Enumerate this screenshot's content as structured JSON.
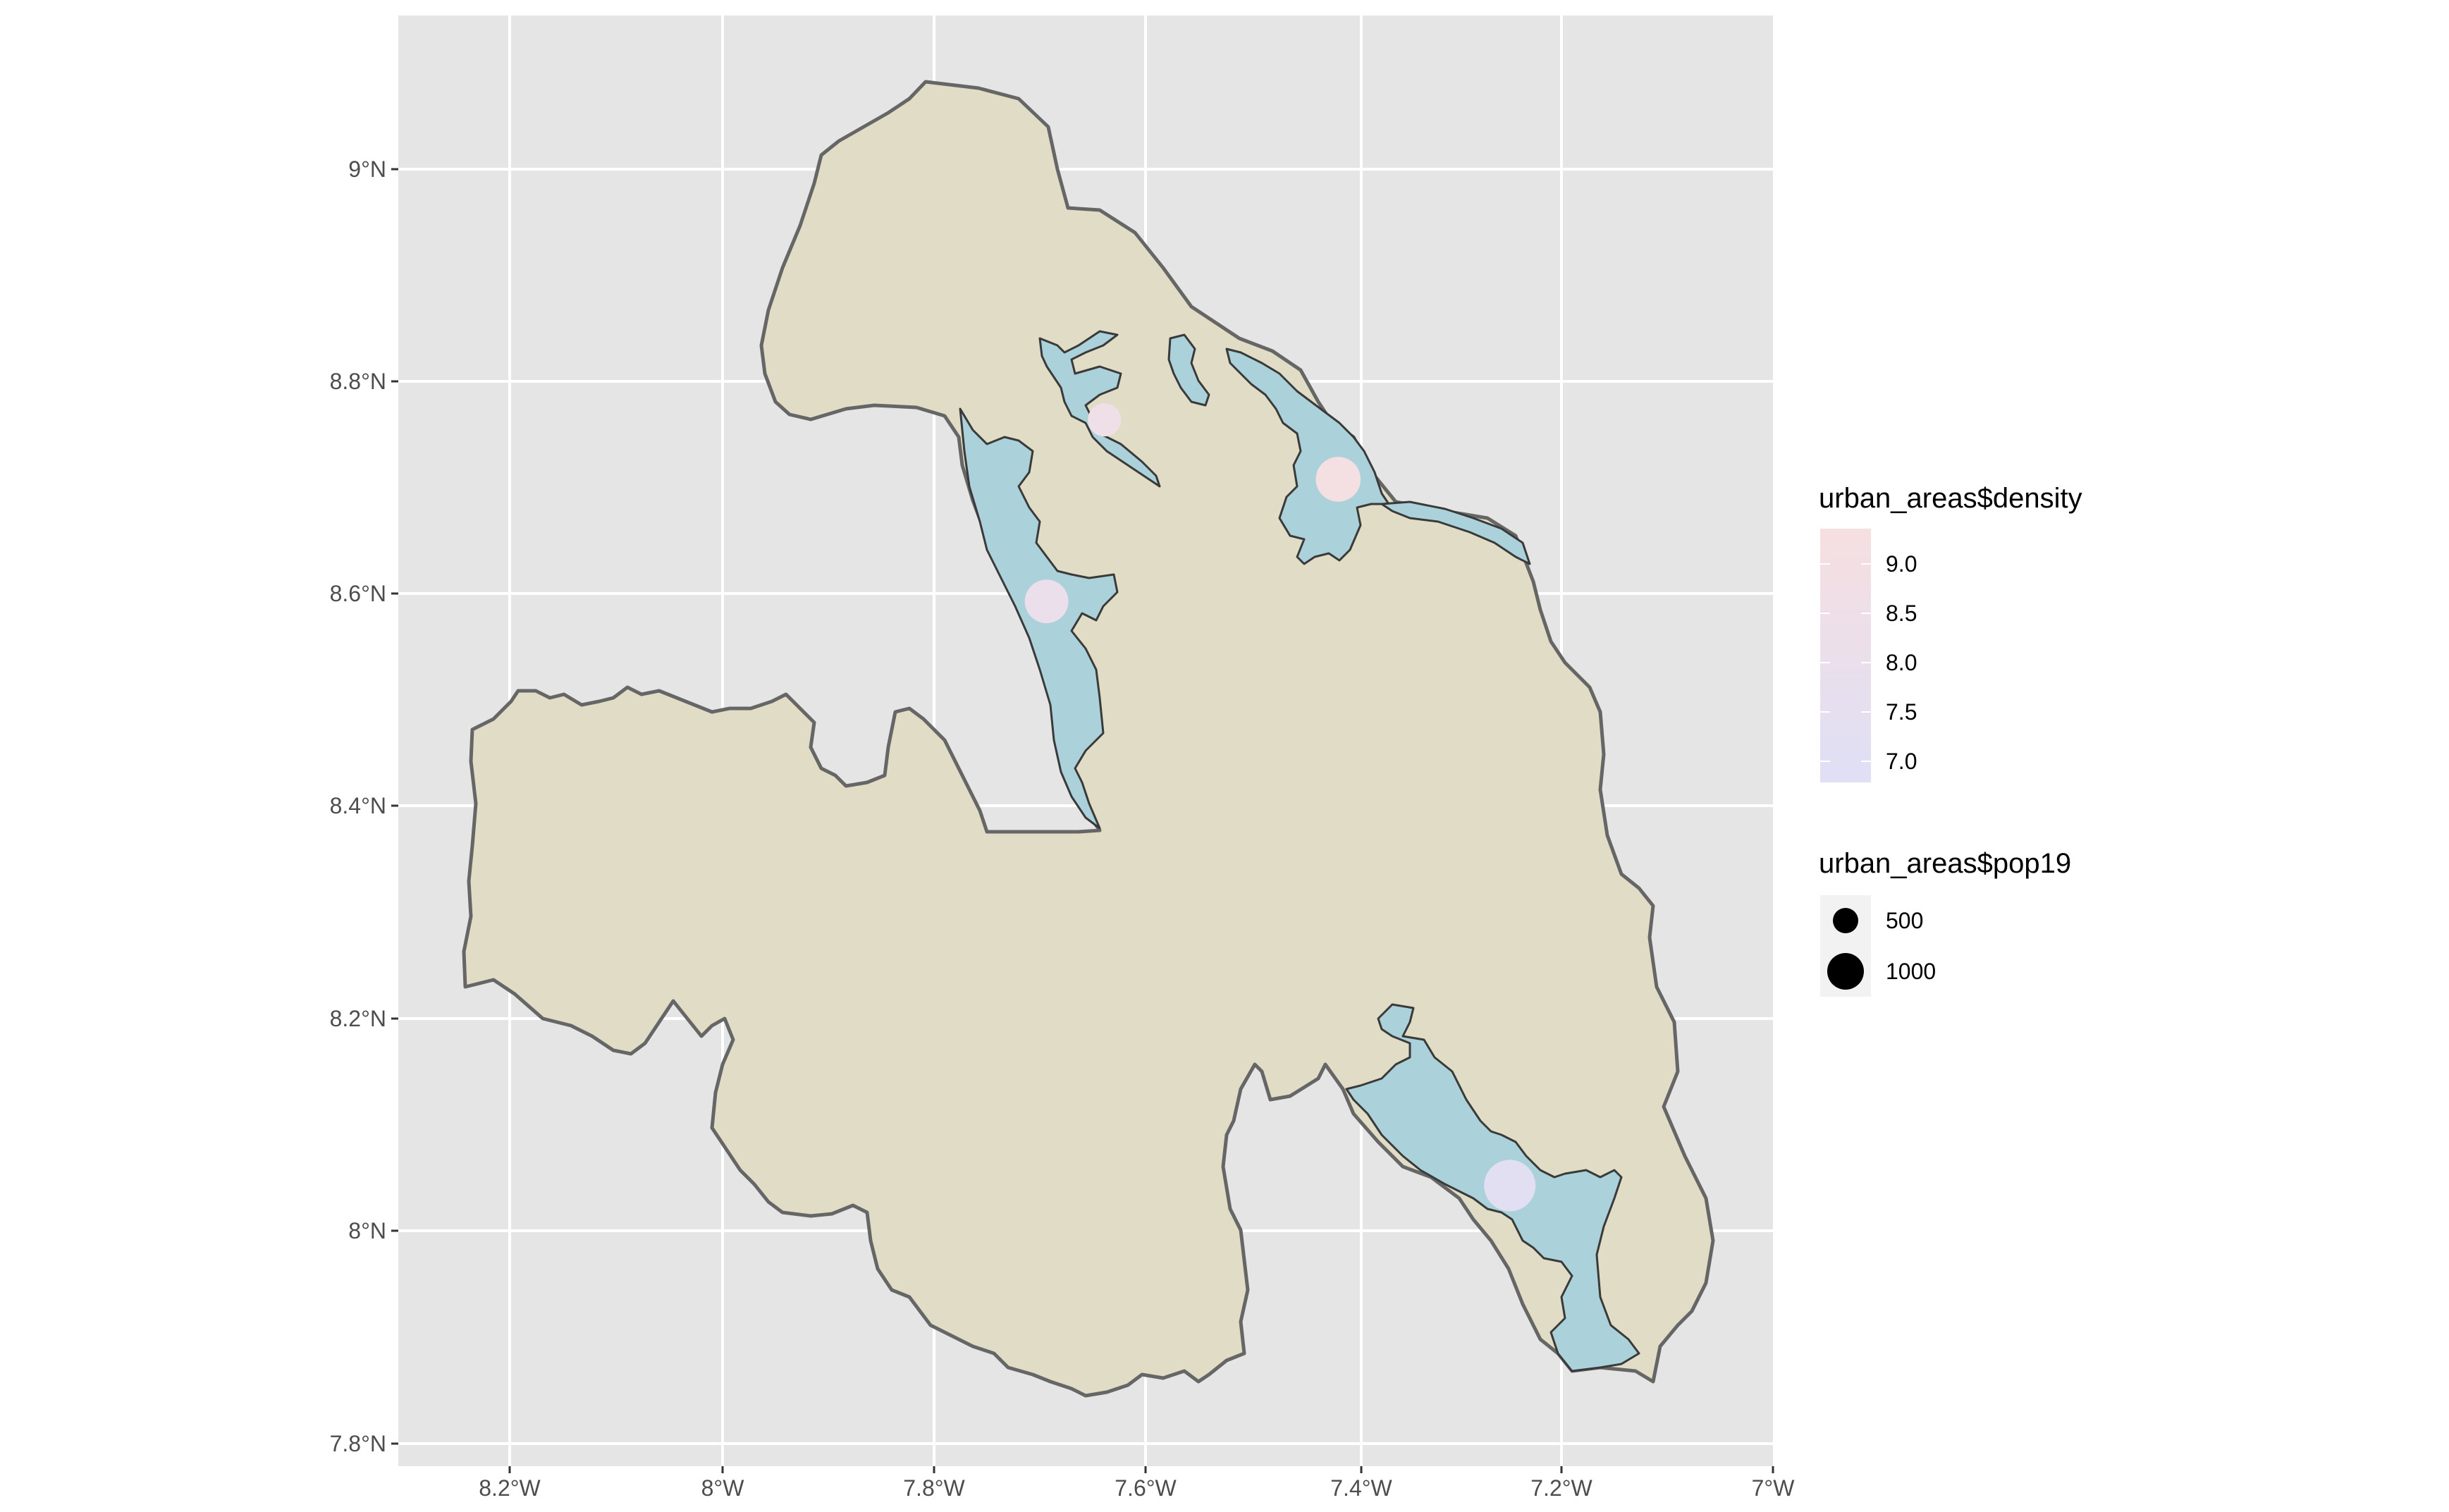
{
  "map": {
    "x_axis": {
      "ticks": [
        "8.2°W",
        "8°W",
        "7.8°W",
        "7.6°W",
        "7.4°W",
        "7.2°W",
        "7°W"
      ]
    },
    "y_axis": {
      "ticks": [
        "9°N",
        "8.8°N",
        "8.6°N",
        "8.4°N",
        "8.2°N",
        "8°N",
        "7.8°N"
      ]
    },
    "colors": {
      "panel_background": "#e5e5e5",
      "grid": "#ffffff",
      "region_fill": "#e1dcc5",
      "region_outline": "#666666",
      "urban_fill": "#abd2db",
      "urban_outline": "#3a3a3a",
      "density_low": "#dfdff6",
      "density_high": "#f6dfe0"
    },
    "urban_centres": [
      {
        "lon": -7.25,
        "lat": 8.043,
        "pop19": 1000,
        "density": 7.2
      },
      {
        "lon": -7.413,
        "lat": 8.708,
        "pop19": 700,
        "density": 9.0
      },
      {
        "lon": -7.69,
        "lat": 8.593,
        "pop19": 650,
        "density": 8.0
      },
      {
        "lon": -7.635,
        "lat": 8.764,
        "pop19": 300,
        "density": 8.5
      }
    ]
  },
  "legend": {
    "density": {
      "title": "urban_areas$density",
      "labels": [
        "9.0",
        "8.5",
        "8.0",
        "7.5",
        "7.0"
      ]
    },
    "pop": {
      "title": "urban_areas$pop19",
      "labels": [
        "500",
        "1000"
      ]
    }
  }
}
